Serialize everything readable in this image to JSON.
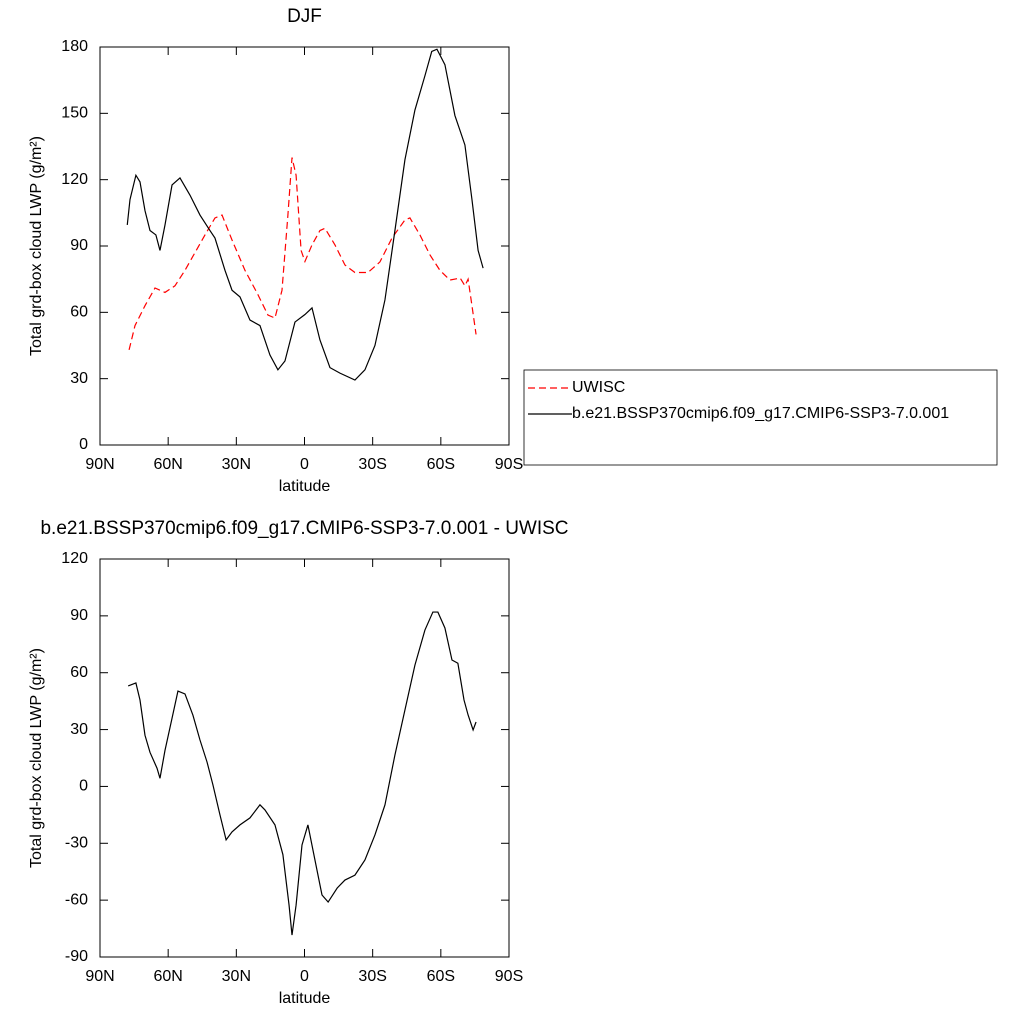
{
  "chart_data": [
    {
      "type": "line",
      "title": "DJF",
      "xlabel": "latitude",
      "ylabel": "Total grd-box cloud LWP (g/m²)",
      "xlim": [
        90,
        -90
      ],
      "ylim": [
        0,
        180
      ],
      "xticks": [
        {
          "value": 90,
          "label": "90N"
        },
        {
          "value": 60,
          "label": "60N"
        },
        {
          "value": 30,
          "label": "30N"
        },
        0,
        {
          "value": -30,
          "label": "30S"
        },
        {
          "value": -60,
          "label": "60S"
        },
        {
          "value": -90,
          "label": "90S"
        }
      ],
      "yticks": [
        0,
        30,
        60,
        90,
        120,
        150,
        180
      ],
      "legend": "right",
      "series": [
        {
          "name": "UWISC",
          "color": "#ff0000",
          "style": "dashed",
          "x": [
            77.2,
            74.6,
            70.2,
            65.8,
            61.4,
            57,
            52.6,
            48.2,
            43.8,
            39.4,
            36.3,
            31.9,
            26.2,
            20.5,
            16.1,
            13,
            9.9,
            7.3,
            5.5,
            3.7,
            1.5,
            -0.2,
            -3.3,
            -6.8,
            -9,
            -13.4,
            -17.8,
            -22.2,
            -27.9,
            -33.2,
            -38.5,
            -44.2,
            -46.4,
            -50.8,
            -55.2,
            -59.6,
            -64,
            -68.5,
            -70.6,
            -72,
            -73.7,
            -75.5
          ],
          "values": [
            43,
            54,
            63,
            71,
            69,
            72,
            79,
            87,
            95,
            102.7,
            104,
            92.7,
            79,
            68,
            58.8,
            57.4,
            70,
            104,
            130,
            122,
            88,
            83,
            90.5,
            97,
            98,
            90.5,
            81.4,
            78,
            78,
            82.8,
            93.6,
            101.8,
            102.7,
            95,
            86,
            79,
            74.6,
            75.5,
            72,
            75,
            63,
            50
          ]
        },
        {
          "name": "b.e21.BSSP370cmip6.f09_g17.CMIP6-SSP3-7.0.001",
          "color": "#000000",
          "style": "solid",
          "x": [
            78,
            76.8,
            74.2,
            72.4,
            70.2,
            68,
            65.4,
            63.6,
            61.4,
            58.3,
            54.8,
            50.4,
            46,
            41.6,
            39.4,
            35,
            31.9,
            28.4,
            24,
            19.6,
            15.2,
            11.7,
            8.6,
            4.2,
            -0.2,
            -3.3,
            -6.8,
            -11.2,
            -15.6,
            -22.2,
            -26.6,
            -31,
            -35.4,
            -39.8,
            -44.2,
            -48.6,
            -53,
            -56,
            -58.3,
            -61.8,
            -66.2,
            -70.6,
            -73.7,
            -76.4,
            -78.6
          ],
          "values": [
            99.5,
            111,
            122,
            119,
            106,
            97,
            95,
            88,
            99.5,
            117.6,
            120.8,
            113,
            104,
            97,
            93.6,
            79,
            70,
            67,
            56.5,
            54,
            40.7,
            34,
            38,
            55.6,
            59,
            62,
            47.5,
            35,
            32.5,
            29.4,
            34,
            45,
            65.6,
            97,
            129,
            151.5,
            167,
            178,
            179,
            172,
            149,
            135.7,
            111,
            88,
            80
          ]
        }
      ]
    },
    {
      "type": "line",
      "title": "b.e21.BSSP370cmip6.f09_g17.CMIP6-SSP3-7.0.001 - UWISC",
      "xlabel": "latitude",
      "ylabel": "Total grd-box cloud LWP (g/m²)",
      "xlim": [
        90,
        -90
      ],
      "ylim": [
        -90,
        120
      ],
      "xticks": [
        {
          "value": 90,
          "label": "90N"
        },
        {
          "value": 60,
          "label": "60N"
        },
        {
          "value": 30,
          "label": "30N"
        },
        0,
        {
          "value": -30,
          "label": "30S"
        },
        {
          "value": -60,
          "label": "60S"
        },
        {
          "value": -90,
          "label": "90S"
        }
      ],
      "yticks": [
        -90,
        -60,
        -30,
        0,
        30,
        60,
        90,
        120
      ],
      "series": [
        {
          "color": "#000000",
          "style": "solid",
          "x": [
            77.6,
            74.2,
            72.4,
            70.2,
            68,
            64.9,
            63.6,
            61.4,
            58.3,
            55.7,
            52.6,
            49.1,
            46,
            42.9,
            40.3,
            37.2,
            34.5,
            31.9,
            28.4,
            24,
            19.6,
            17.4,
            13,
            9.5,
            6.8,
            5.5,
            3.7,
            1.1,
            -1.5,
            -4.6,
            -7.7,
            -10.4,
            -14.4,
            -17.8,
            -22.2,
            -26.6,
            -31,
            -35.4,
            -39.8,
            -44.2,
            -48.6,
            -53,
            -56.5,
            -58.7,
            -61.8,
            -64.9,
            -67.5,
            -70.2,
            -72,
            -74.2,
            -75.5
          ],
          "values": [
            53,
            54.6,
            45.6,
            27,
            18,
            9.6,
            4.3,
            19,
            36,
            50.3,
            48.8,
            37.6,
            24.5,
            12.9,
            0.8,
            -15,
            -28.2,
            -24,
            -20.3,
            -16.6,
            -9.7,
            -12.4,
            -20.3,
            -36,
            -62.6,
            -78.4,
            -62.6,
            -30.9,
            -20.3,
            -38.8,
            -57.3,
            -61,
            -53.6,
            -49.4,
            -46.8,
            -38.8,
            -25.6,
            -9.8,
            16.6,
            40.3,
            64,
            82.5,
            92,
            92,
            83.6,
            66.7,
            65,
            45.6,
            37.7,
            29.8,
            34
          ]
        }
      ]
    }
  ]
}
